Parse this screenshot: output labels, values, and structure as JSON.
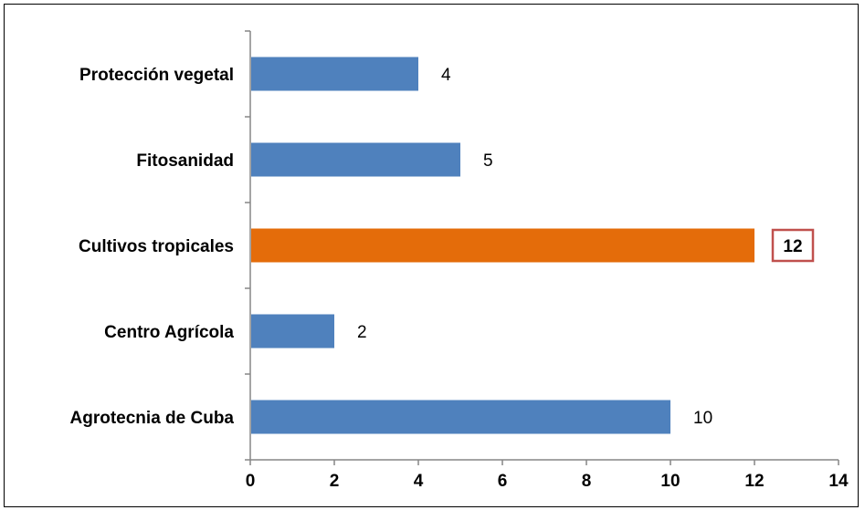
{
  "chart_data": {
    "type": "bar",
    "orientation": "horizontal",
    "categories": [
      "Agrotecnia de Cuba",
      "Centro Agrícola",
      "Cultivos tropicales",
      "Fitosanidad",
      "Protección vegetal"
    ],
    "values": [
      10,
      2,
      12,
      5,
      4
    ],
    "data_labels": [
      "10",
      "2",
      "12",
      "5",
      "4"
    ],
    "xlim": [
      0,
      14
    ],
    "x_ticks": [
      "0",
      "2",
      "4",
      "6",
      "8",
      "10",
      "12",
      "14"
    ],
    "title": "",
    "xlabel": "",
    "ylabel": "",
    "grid": false,
    "legend": "none",
    "highlight_index": 2,
    "colors": {
      "bar": "#4F81BD",
      "highlight_bar": "#E46C0A",
      "highlight_label_box": "#C0504D",
      "axis": "#868686"
    }
  }
}
